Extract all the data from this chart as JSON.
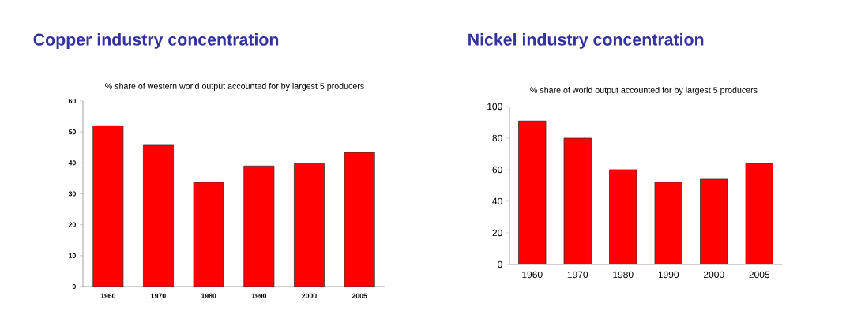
{
  "chart_data": [
    {
      "type": "bar",
      "title": "Copper industry concentration",
      "subtitle": "% share of western world output accounted for by largest 5 producers",
      "categories": [
        "1960",
        "1970",
        "1980",
        "1990",
        "2000",
        "2005"
      ],
      "values": [
        52,
        45.7,
        33.7,
        39,
        39.7,
        43.4
      ],
      "color": "#ff0000",
      "ylim": [
        0,
        60
      ],
      "yticks": [
        0,
        10,
        20,
        30,
        40,
        50,
        60
      ]
    },
    {
      "type": "bar",
      "title": "Nickel industry concentration",
      "subtitle": "% share of world output accounted for by largest 5 producers",
      "categories": [
        "1960",
        "1970",
        "1980",
        "1990",
        "2000",
        "2005"
      ],
      "values": [
        91,
        80,
        60,
        52,
        54,
        64
      ],
      "color": "#ff0000",
      "ylim": [
        0,
        100
      ],
      "yticks": [
        0,
        20,
        40,
        60,
        80,
        100
      ]
    }
  ]
}
